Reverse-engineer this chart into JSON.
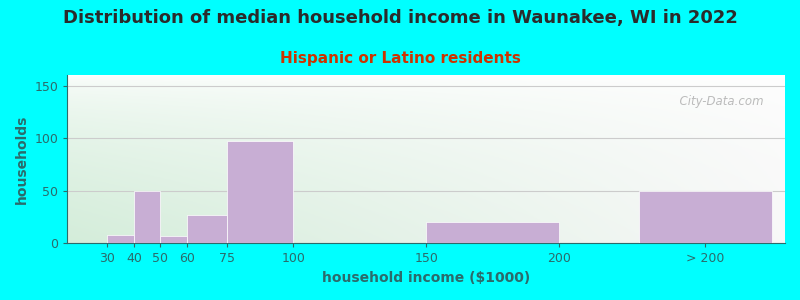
{
  "title": "Distribution of median household income in Waunakee, WI in 2022",
  "subtitle": "Hispanic or Latino residents",
  "xlabel": "household income ($1000)",
  "ylabel": "households",
  "bar_positions": [
    30,
    40,
    50,
    60,
    75,
    100,
    150,
    200,
    230
  ],
  "bar_widths": [
    10,
    10,
    10,
    15,
    25,
    25,
    50,
    30,
    50
  ],
  "bar_heights": [
    8,
    50,
    7,
    27,
    97,
    0,
    20,
    0,
    50
  ],
  "bar_color": "#c8aed4",
  "bar_edgecolor": "#ffffff",
  "xlim": [
    15,
    285
  ],
  "ylim": [
    0,
    160
  ],
  "yticks": [
    0,
    50,
    100,
    150
  ],
  "xtick_labels": [
    "30",
    "40",
    "50",
    "60",
    "75",
    "100",
    "150",
    "200",
    "> 200"
  ],
  "xtick_positions": [
    30,
    40,
    50,
    60,
    75,
    100,
    150,
    200,
    255
  ],
  "background_outer": "#00ffff",
  "background_inner_left": "#d4edda",
  "background_inner_right": "#f8f8f8",
  "title_color": "#2b2b2b",
  "subtitle_color": "#cc3300",
  "axis_label_color": "#2b6b6b",
  "tick_color": "#2b6b6b",
  "grid_color": "#cccccc",
  "watermark": "  City-Data.com",
  "title_fontsize": 13,
  "subtitle_fontsize": 11,
  "label_fontsize": 10
}
